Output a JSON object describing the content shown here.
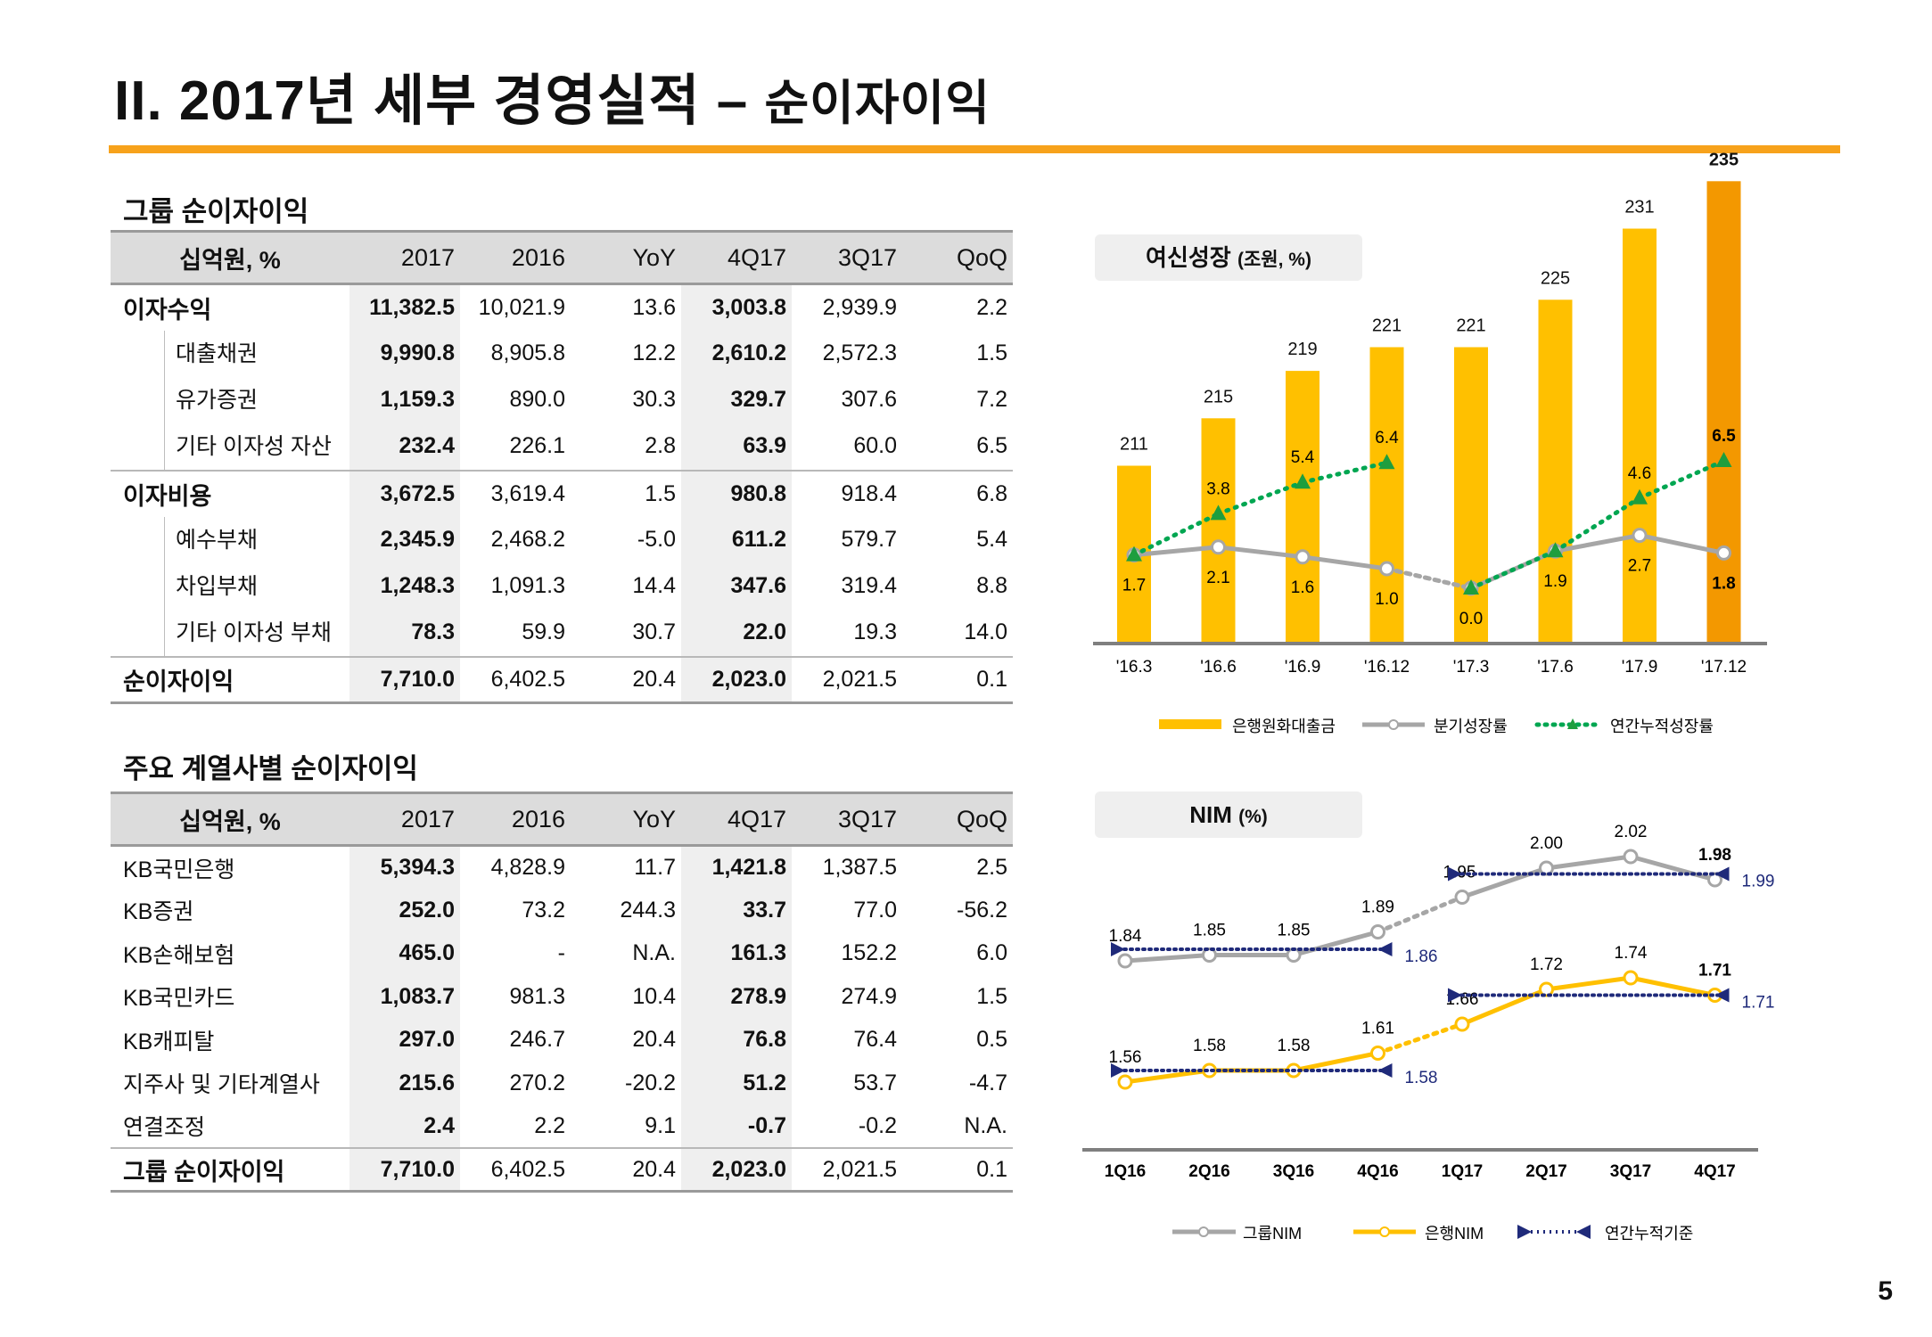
{
  "header": {
    "title_main": "II. 2017년 세부 경영실적",
    "title_dash": " – ",
    "title_sub": "순이자이익"
  },
  "table1": {
    "section": "그룹 순이자이익",
    "unit": "십억원, %",
    "columns": [
      "2017",
      "2016",
      "YoY",
      "4Q17",
      "3Q17",
      "QoQ"
    ],
    "rows": [
      {
        "label": "이자수익",
        "values": [
          "11,382.5",
          "10,021.9",
          "13.6",
          "3,003.8",
          "2,939.9",
          "2.2"
        ]
      },
      {
        "label": "대출채권",
        "values": [
          "9,990.8",
          "8,905.8",
          "12.2",
          "2,610.2",
          "2,572.3",
          "1.5"
        ]
      },
      {
        "label": "유가증권",
        "values": [
          "1,159.3",
          "890.0",
          "30.3",
          "329.7",
          "307.6",
          "7.2"
        ]
      },
      {
        "label": "기타 이자성 자산",
        "values": [
          "232.4",
          "226.1",
          "2.8",
          "63.9",
          "60.0",
          "6.5"
        ]
      },
      {
        "label": "이자비용",
        "values": [
          "3,672.5",
          "3,619.4",
          "1.5",
          "980.8",
          "918.4",
          "6.8"
        ]
      },
      {
        "label": "예수부채",
        "values": [
          "2,345.9",
          "2,468.2",
          "-5.0",
          "611.2",
          "579.7",
          "5.4"
        ]
      },
      {
        "label": "차입부채",
        "values": [
          "1,248.3",
          "1,091.3",
          "14.4",
          "347.6",
          "319.4",
          "8.8"
        ]
      },
      {
        "label": "기타 이자성 부채",
        "values": [
          "78.3",
          "59.9",
          "30.7",
          "22.0",
          "19.3",
          "14.0"
        ]
      },
      {
        "label": "순이자이익",
        "values": [
          "7,710.0",
          "6,402.5",
          "20.4",
          "2,023.0",
          "2,021.5",
          "0.1"
        ]
      }
    ]
  },
  "table2": {
    "section": "주요 계열사별 순이자이익",
    "unit": "십억원, %",
    "columns": [
      "2017",
      "2016",
      "YoY",
      "4Q17",
      "3Q17",
      "QoQ"
    ],
    "rows": [
      {
        "label": "KB국민은행",
        "values": [
          "5,394.3",
          "4,828.9",
          "11.7",
          "1,421.8",
          "1,387.5",
          "2.5"
        ]
      },
      {
        "label": "KB증권",
        "values": [
          "252.0",
          "73.2",
          "244.3",
          "33.7",
          "77.0",
          "-56.2"
        ]
      },
      {
        "label": "KB손해보험",
        "values": [
          "465.0",
          "-",
          "N.A.",
          "161.3",
          "152.2",
          "6.0"
        ]
      },
      {
        "label": "KB국민카드",
        "values": [
          "1,083.7",
          "981.3",
          "10.4",
          "278.9",
          "274.9",
          "1.5"
        ]
      },
      {
        "label": "KB캐피탈",
        "values": [
          "297.0",
          "246.7",
          "20.4",
          "76.8",
          "76.4",
          "0.5"
        ]
      },
      {
        "label": "지주사 및 기타계열사",
        "values": [
          "215.6",
          "270.2",
          "-20.2",
          "51.2",
          "53.7",
          "-4.7"
        ]
      },
      {
        "label": "연결조정",
        "values": [
          "2.4",
          "2.2",
          "9.1",
          "-0.7",
          "-0.2",
          "N.A."
        ]
      },
      {
        "label": "그룹 순이자이익",
        "values": [
          "7,710.0",
          "6,402.5",
          "20.4",
          "2,023.0",
          "2,021.5",
          "0.1"
        ]
      }
    ]
  },
  "chart_data": [
    {
      "type": "bar",
      "title": "여신성장",
      "unit": "(조원, %)",
      "categories": [
        "'16.3",
        "'16.6",
        "'16.9",
        "'16.12",
        "'17.3",
        "'17.6",
        "'17.9",
        "'17.12"
      ],
      "series": [
        {
          "name": "은행원화대출금",
          "type": "bar",
          "values": [
            211,
            215,
            219,
            221,
            221,
            225,
            231,
            235
          ]
        },
        {
          "name": "분기성장률",
          "type": "line",
          "values": [
            1.7,
            2.1,
            1.6,
            1.0,
            0.0,
            1.9,
            2.7,
            1.8
          ]
        },
        {
          "name": "연간누적성장률",
          "type": "line",
          "style": "dotted",
          "values": [
            1.7,
            3.8,
            5.4,
            6.4,
            0.0,
            1.9,
            4.6,
            6.5
          ]
        }
      ],
      "legend_position": "bottom",
      "colors": {
        "bar": "#ffc000",
        "bar_highlight": "#f39800",
        "quarterly": "#a6a6a6",
        "cumulative": "#00a651",
        "marker": "#1e9e3e"
      }
    },
    {
      "type": "line",
      "title": "NIM",
      "unit": "(%)",
      "categories": [
        "1Q16",
        "2Q16",
        "3Q16",
        "4Q16",
        "1Q17",
        "2Q17",
        "3Q17",
        "4Q17"
      ],
      "series": [
        {
          "name": "그룹NIM",
          "values": [
            1.84,
            1.85,
            1.85,
            1.89,
            1.95,
            2.0,
            2.02,
            1.98
          ]
        },
        {
          "name": "은행NIM",
          "values": [
            1.56,
            1.58,
            1.58,
            1.61,
            1.66,
            1.72,
            1.74,
            1.71
          ]
        },
        {
          "name": "연간누적기준",
          "style": "dotted",
          "segments": [
            {
              "series": "그룹NIM",
              "from": "1Q16",
              "to": "4Q16",
              "value": 1.86
            },
            {
              "series": "그룹NIM",
              "from": "1Q17",
              "to": "4Q17",
              "value": 1.99
            },
            {
              "series": "은행NIM",
              "from": "1Q16",
              "to": "4Q16",
              "value": 1.58
            },
            {
              "series": "은행NIM",
              "from": "1Q17",
              "to": "4Q17",
              "value": 1.71
            }
          ]
        }
      ],
      "legend_position": "bottom",
      "colors": {
        "group": "#a6a6a6",
        "bank": "#ffc000",
        "cumulative": "#1f2a7a"
      }
    }
  ],
  "page": {
    "number": "5"
  }
}
